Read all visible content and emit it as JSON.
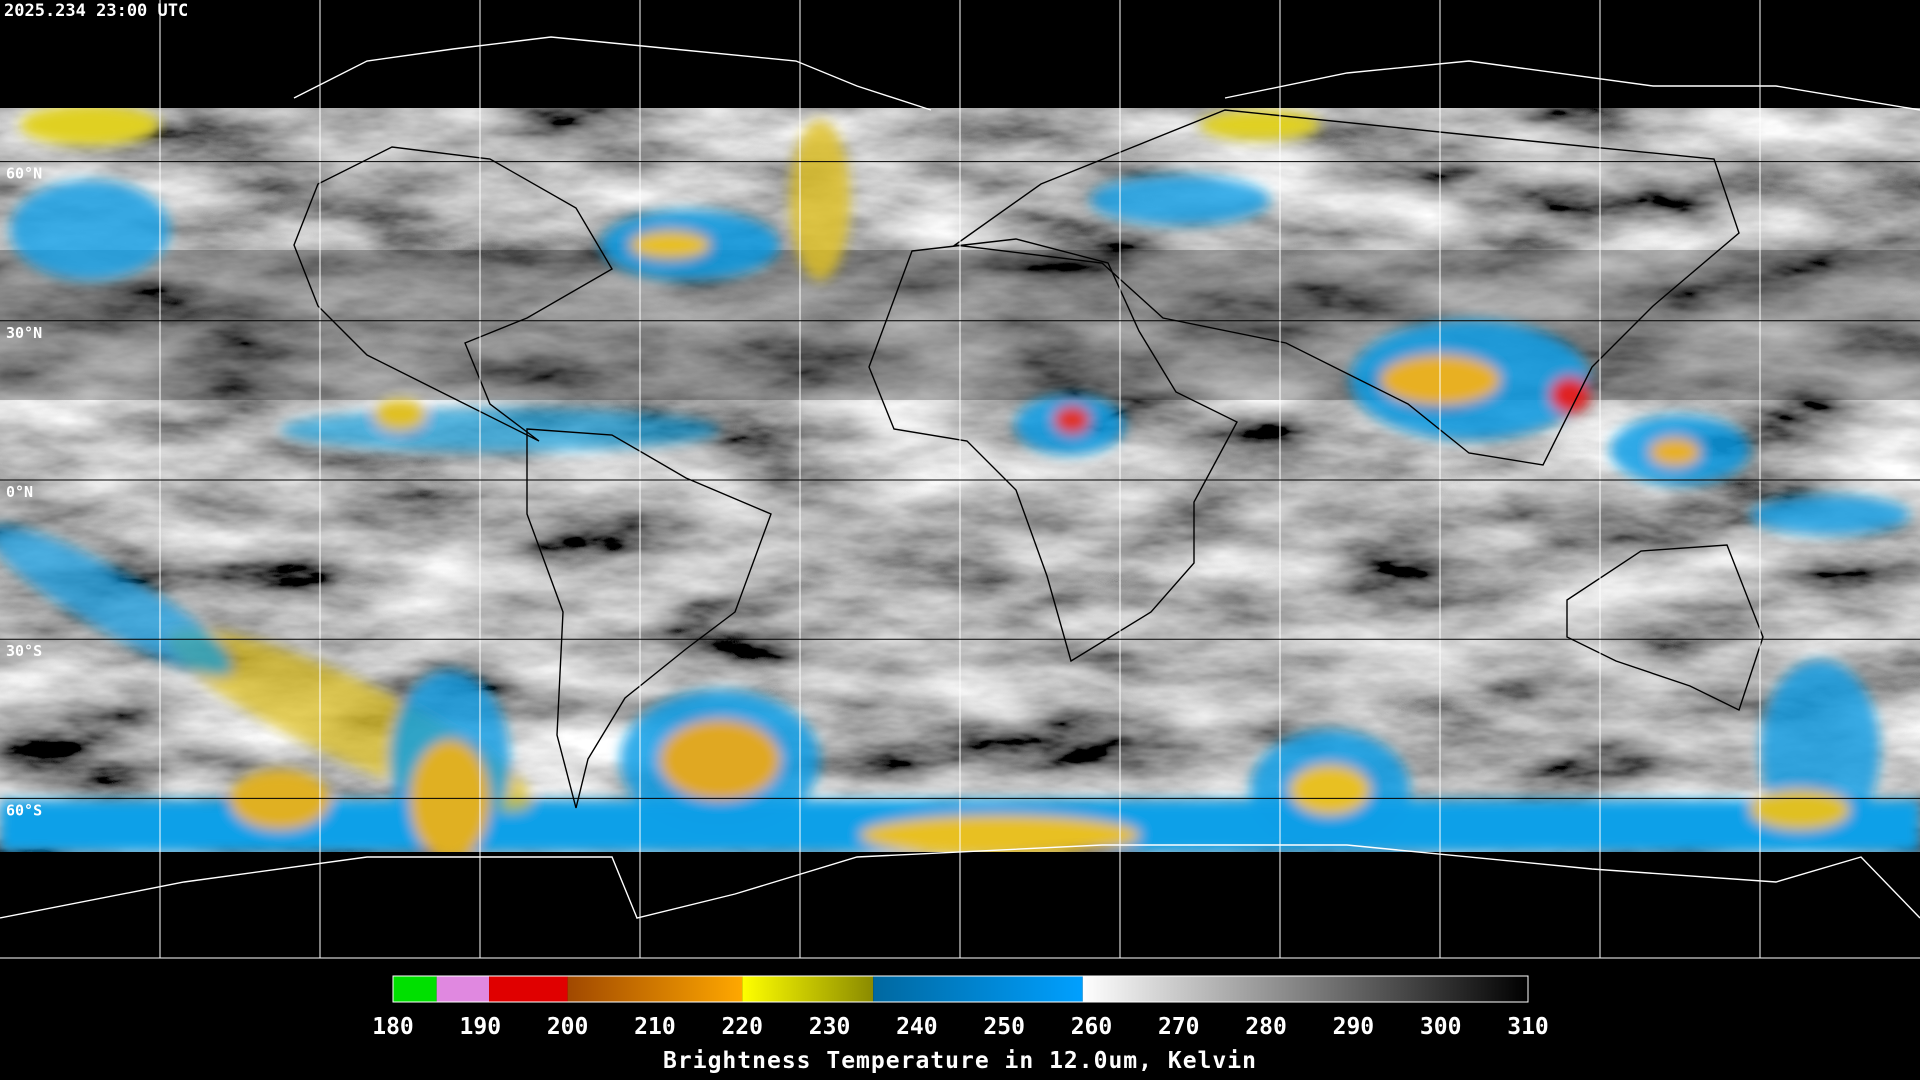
{
  "header": {
    "timestamp": "2025.234 23:00 UTC"
  },
  "map": {
    "lat_range": [
      90,
      -90
    ],
    "lat_ticks": [
      {
        "value": 60,
        "label": "60°N"
      },
      {
        "value": 30,
        "label": "30°N"
      },
      {
        "value": 0,
        "label": "0°N"
      },
      {
        "value": -30,
        "label": "30°S"
      },
      {
        "value": -60,
        "label": "60°S"
      }
    ]
  },
  "colorbar": {
    "title": "Brightness Temperature in 12.0um, Kelvin",
    "ticks": [
      180,
      190,
      200,
      210,
      220,
      230,
      240,
      250,
      260,
      270,
      280,
      290,
      300,
      310
    ],
    "segments": [
      {
        "from": 180,
        "to": 185,
        "colors": [
          "#00e000",
          "#00e000"
        ]
      },
      {
        "from": 185,
        "to": 191,
        "colors": [
          "#e088e0",
          "#e088e0"
        ]
      },
      {
        "from": 191,
        "to": 200,
        "colors": [
          "#e00000",
          "#e00000"
        ]
      },
      {
        "from": 200,
        "to": 220,
        "colors": [
          "#a04800",
          "#ffa800"
        ]
      },
      {
        "from": 220,
        "to": 235,
        "colors": [
          "#ffff00",
          "#8a8a00"
        ]
      },
      {
        "from": 235,
        "to": 259,
        "colors": [
          "#0068a0",
          "#00a0ff"
        ]
      },
      {
        "from": 259,
        "to": 310,
        "colors": [
          "#ffffff",
          "#000000"
        ]
      }
    ]
  }
}
